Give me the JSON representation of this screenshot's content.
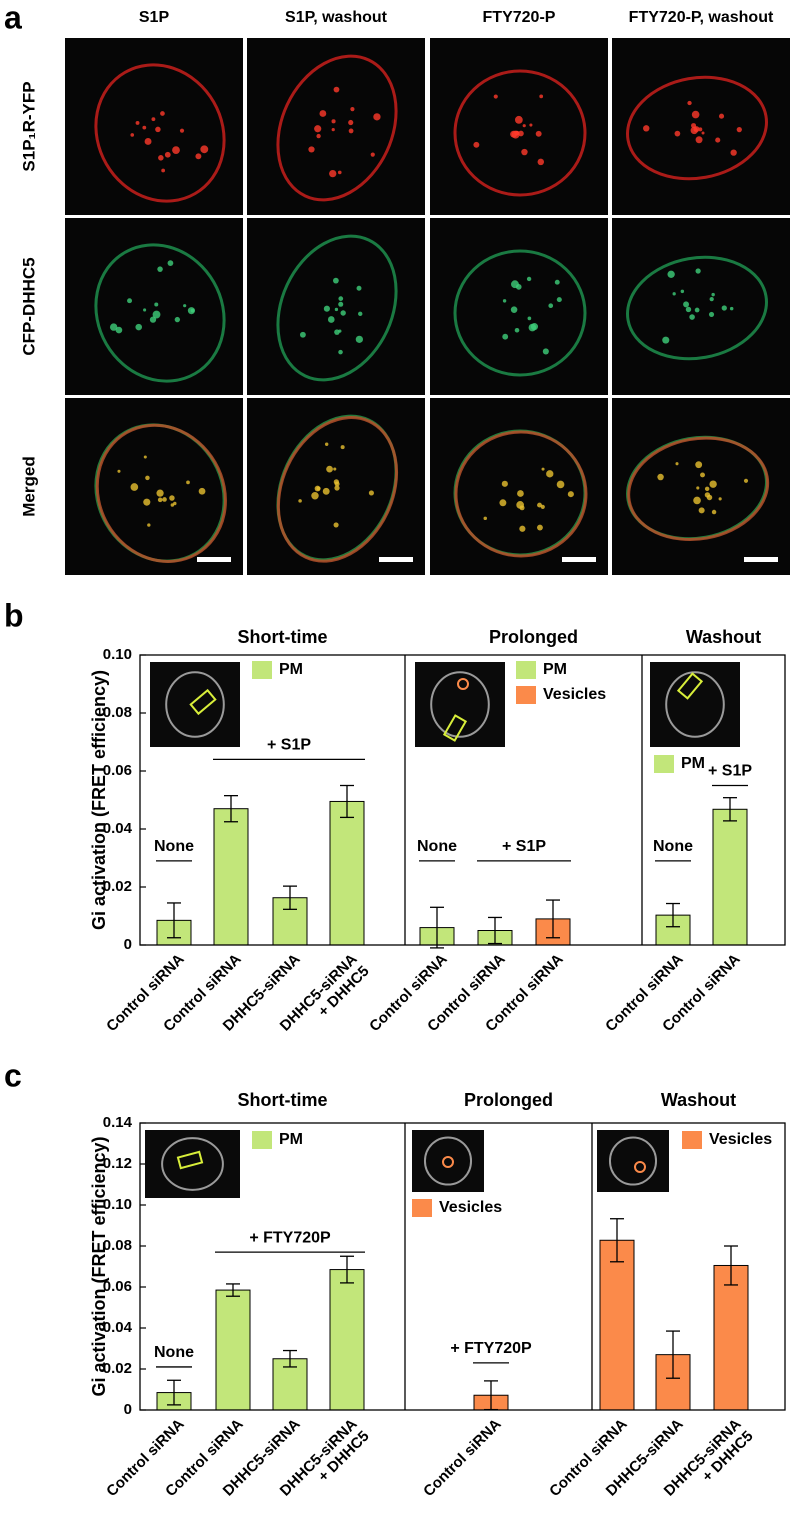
{
  "panel_a": {
    "label": "a",
    "columns": [
      "S1P",
      "S1P, washout",
      "FTY720-P",
      "FTY720-P, washout"
    ],
    "rows": [
      "S1P₁R-YFP",
      "CFP-DHHC5",
      "Merged"
    ]
  },
  "chart_data": [
    {
      "type": "bar",
      "label": "b",
      "ylabel": "Gi activation (FRET efficiency)",
      "ylim": [
        0,
        0.1
      ],
      "yticks": [
        0,
        0.02,
        0.04,
        0.06,
        0.08,
        {
          "value": 0.1,
          "label": "0.10"
        }
      ],
      "groups": [
        {
          "title": "Short-time",
          "legend": [
            {
              "name": "PM",
              "color": "#c2e67a"
            }
          ],
          "categories": [
            "Control siRNA",
            "Control siRNA",
            "DHHC5-siRNA",
            [
              "DHHC5-siRNA",
              "+ DHHC5"
            ]
          ],
          "values": [
            0.0085,
            0.047,
            0.0163,
            0.0495
          ],
          "errors": [
            0.006,
            0.0045,
            0.004,
            0.0055
          ],
          "colors": [
            "#c2e67a",
            "#c2e67a",
            "#c2e67a",
            "#c2e67a"
          ],
          "annotations": [
            "None",
            "+ S1P"
          ]
        },
        {
          "title": "Prolonged",
          "legend": [
            {
              "name": "PM",
              "color": "#c2e67a"
            },
            {
              "name": "Vesicles",
              "color": "#fb8a4a"
            }
          ],
          "categories": [
            "Control siRNA",
            "Control siRNA",
            "Control siRNA"
          ],
          "values": [
            0.006,
            0.005,
            0.009
          ],
          "errors": [
            0.007,
            0.0045,
            0.0065
          ],
          "colors": [
            "#c2e67a",
            "#c2e67a",
            "#fb8a4a"
          ],
          "annotations": [
            "None",
            "+ S1P"
          ]
        },
        {
          "title": "Washout",
          "legend": [
            {
              "name": "PM",
              "color": "#c2e67a"
            }
          ],
          "categories": [
            "Control siRNA",
            "Control siRNA"
          ],
          "values": [
            0.0103,
            0.0468
          ],
          "errors": [
            0.004,
            0.004
          ],
          "colors": [
            "#c2e67a",
            "#c2e67a"
          ],
          "annotations": [
            "None",
            "+ S1P"
          ]
        }
      ]
    },
    {
      "type": "bar",
      "label": "c",
      "ylabel": "Gi activation (FRET efficiency)",
      "ylim": [
        0,
        0.14
      ],
      "yticks": [
        0,
        0.02,
        0.04,
        0.06,
        0.08,
        {
          "value": 0.1,
          "label": "0.10"
        },
        0.12,
        0.14
      ],
      "groups": [
        {
          "title": "Short-time",
          "legend": [
            {
              "name": "PM",
              "color": "#c2e67a"
            }
          ],
          "categories": [
            "Control siRNA",
            "Control siRNA",
            "DHHC5-siRNA",
            [
              "DHHC5-siRNA",
              "+ DHHC5"
            ]
          ],
          "values": [
            0.0085,
            0.0585,
            0.025,
            0.0685
          ],
          "errors": [
            0.006,
            0.003,
            0.004,
            0.0065
          ],
          "colors": [
            "#c2e67a",
            "#c2e67a",
            "#c2e67a",
            "#c2e67a"
          ],
          "annotations": [
            "None",
            "+ FTY720P"
          ]
        },
        {
          "title": "Prolonged",
          "legend": [
            {
              "name": "Vesicles",
              "color": "#fb8a4a"
            }
          ],
          "categories": [
            "Control siRNA"
          ],
          "values": [
            0.0072
          ],
          "errors": [
            0.007
          ],
          "colors": [
            "#fb8a4a"
          ],
          "annotations": [
            "+ FTY720P"
          ]
        },
        {
          "title": "Washout",
          "legend": [
            {
              "name": "Vesicles",
              "color": "#fb8a4a"
            }
          ],
          "categories": [
            "Control siRNA",
            "DHHC5-siRNA",
            [
              "DHHC5-siRNA",
              "+ DHHC5"
            ]
          ],
          "values": [
            0.0828,
            0.027,
            0.0705
          ],
          "errors": [
            0.0105,
            0.0115,
            0.0095
          ],
          "colors": [
            "#fb8a4a",
            "#fb8a4a",
            "#fb8a4a"
          ],
          "annotations": []
        }
      ]
    }
  ]
}
